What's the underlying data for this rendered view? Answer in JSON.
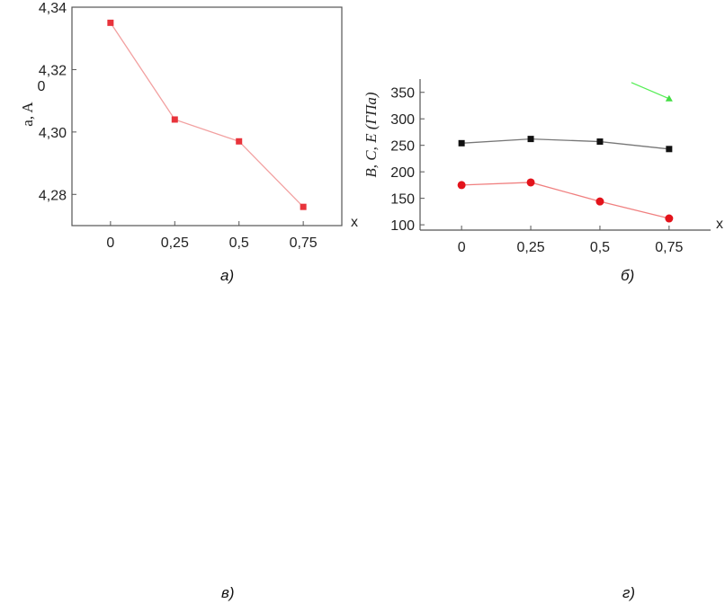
{
  "captions": {
    "a": "а)",
    "b": "б)",
    "c": "в)",
    "d": "г)"
  },
  "chart_data": [
    {
      "type": "line",
      "ylabel": "a, A",
      "ylabel_mark": "0",
      "xlabel": "x",
      "categories": [
        "0",
        "0,25",
        "0,5",
        "0,75"
      ],
      "x": [
        0,
        0.25,
        0.5,
        0.75
      ],
      "y_ticks": [
        "4,28",
        "4,30",
        "4,32",
        "4,34"
      ],
      "ylim": [
        4.27,
        4.34
      ],
      "grid": false,
      "series": [
        {
          "values": [
            4.335,
            4.304,
            4.297,
            4.276
          ],
          "color": "#e8333b",
          "line_color": "#f2a0a0",
          "marker": "square"
        }
      ]
    },
    {
      "type": "line",
      "ylabel": "B, C, E (ГПа)",
      "xlabel": "x",
      "categories": [
        "0",
        "0,25",
        "0,5",
        "0,75"
      ],
      "x": [
        0,
        0.25,
        0.5,
        0.75
      ],
      "y_ticks": [
        "100",
        "150",
        "200",
        "250",
        "300",
        "350"
      ],
      "ylim": [
        90,
        375
      ],
      "grid": false,
      "series": [
        {
          "values": [
            254,
            262,
            257,
            243
          ],
          "color": "#111111",
          "line_color": "#777777",
          "marker": "square"
        },
        {
          "values": [
            175,
            180,
            144,
            112
          ],
          "color": "#e3131b",
          "line_color": "#f08080",
          "marker": "circle"
        },
        {
          "values": [
            338
          ],
          "x": [
            0.75
          ],
          "color": "#44dd44",
          "line_color": "#55ee55",
          "marker": "triangle"
        }
      ]
    }
  ]
}
